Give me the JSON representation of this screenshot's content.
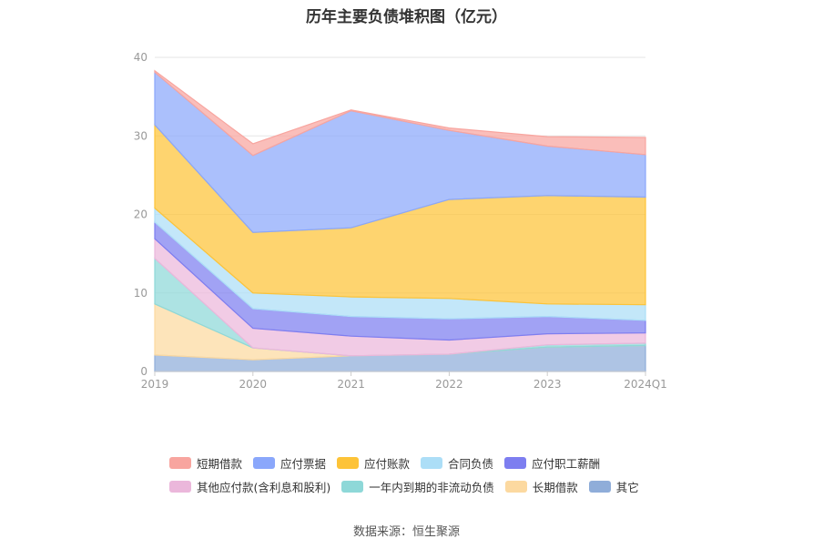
{
  "title": "历年主要负债堆积图（亿元）",
  "source_label": "数据来源：恒生聚源",
  "chart_data": {
    "type": "area",
    "stacked": true,
    "title": "历年主要负债堆积图（亿元）",
    "categories": [
      "2019",
      "2020",
      "2021",
      "2022",
      "2023",
      "2024Q1"
    ],
    "ylim": [
      0,
      40
    ],
    "yticks": [
      0,
      10,
      20,
      30,
      40
    ],
    "grid": true,
    "legend_position": "bottom",
    "series": [
      {
        "name": "其它",
        "color": "#8fadd9",
        "values": [
          2.1,
          1.5,
          2.0,
          2.2,
          3.1,
          3.3
        ]
      },
      {
        "name": "长期借款",
        "color": "#fcd9a0",
        "values": [
          6.5,
          1.5,
          0.0,
          0.0,
          0.0,
          0.0
        ]
      },
      {
        "name": "一年内到期的非流动负债",
        "color": "#8ed8d8",
        "values": [
          5.8,
          0.0,
          0.0,
          0.0,
          0.3,
          0.3
        ]
      },
      {
        "name": "其他应付款(含利息和股利)",
        "color": "#ebb7db",
        "values": [
          2.5,
          2.5,
          2.5,
          1.8,
          1.4,
          1.3
        ]
      },
      {
        "name": "应付职工薪酬",
        "color": "#7d7ef0",
        "values": [
          2.1,
          2.5,
          2.5,
          2.7,
          2.2,
          1.6
        ]
      },
      {
        "name": "合同负债",
        "color": "#acdef7",
        "values": [
          1.8,
          2.0,
          2.5,
          2.6,
          1.6,
          2.0
        ]
      },
      {
        "name": "应付账款",
        "color": "#fdc338",
        "values": [
          10.6,
          7.7,
          8.8,
          12.6,
          13.8,
          13.7
        ]
      },
      {
        "name": "应付票据",
        "color": "#8aa7fb",
        "values": [
          6.7,
          9.8,
          14.9,
          8.8,
          6.3,
          5.4
        ]
      },
      {
        "name": "短期借款",
        "color": "#f8a59f",
        "values": [
          0.2,
          1.5,
          0.1,
          0.3,
          1.2,
          2.2
        ]
      }
    ]
  },
  "legend": {
    "rows": [
      [
        {
          "label": "短期借款",
          "color": "#f8a59f"
        },
        {
          "label": "应付票据",
          "color": "#8aa7fb"
        },
        {
          "label": "应付账款",
          "color": "#fdc338"
        },
        {
          "label": "合同负债",
          "color": "#acdef7"
        },
        {
          "label": "应付职工薪酬",
          "color": "#7d7ef0"
        }
      ],
      [
        {
          "label": "其他应付款(含利息和股利)",
          "color": "#ebb7db"
        },
        {
          "label": "一年内到期的非流动负债",
          "color": "#8ed8d8"
        },
        {
          "label": "长期借款",
          "color": "#fcd9a0"
        },
        {
          "label": "其它",
          "color": "#8fadd9"
        }
      ]
    ]
  }
}
